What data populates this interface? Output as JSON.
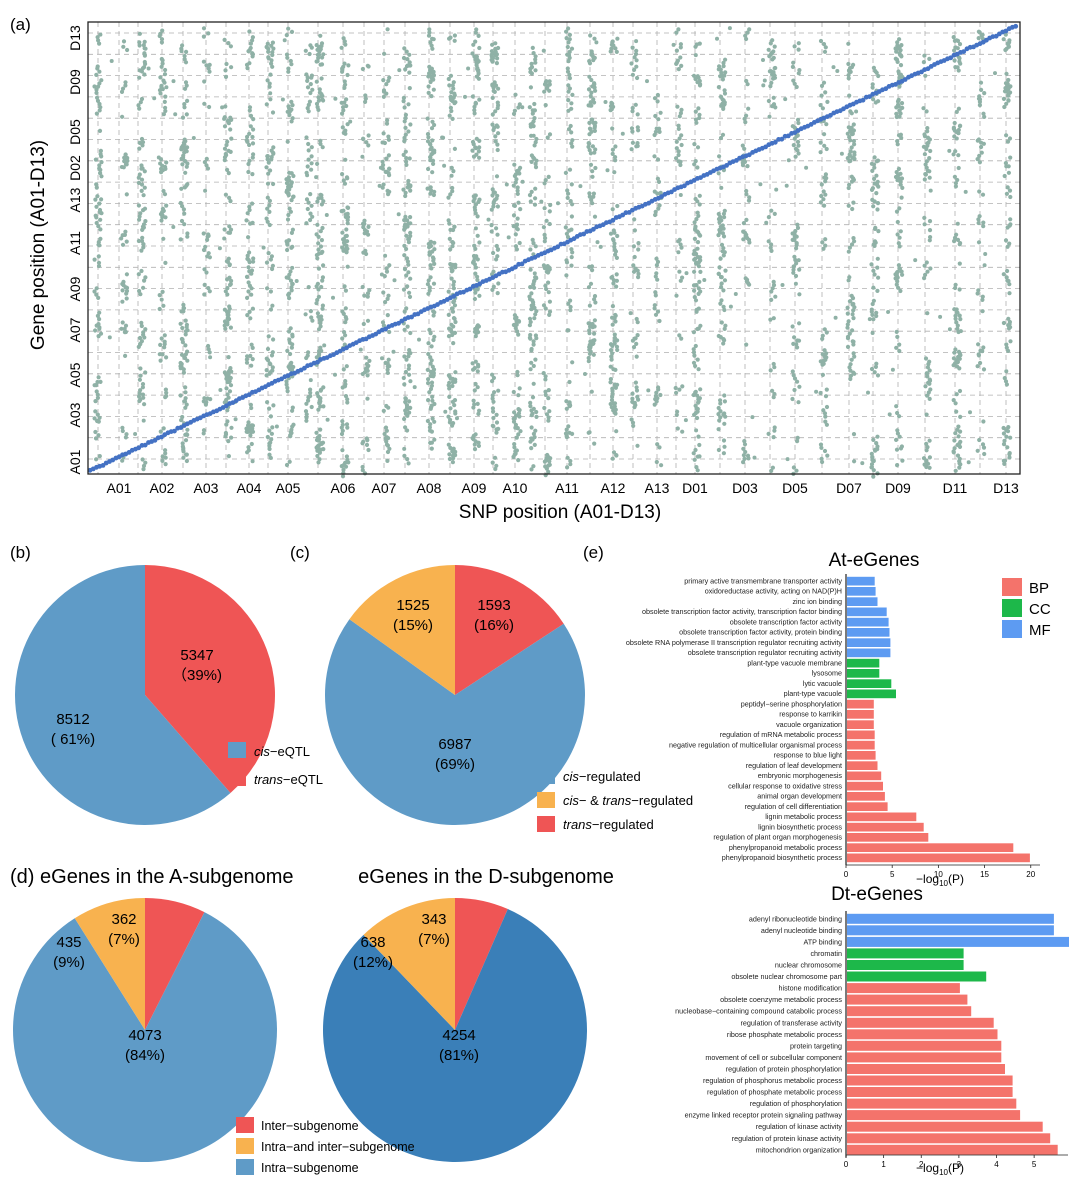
{
  "colors": {
    "qtl_dot": "#8fb1a6",
    "diagonal": "#4472c4",
    "grid": "#b0b0b0",
    "pie_blue": "#5f9bc7",
    "pie_blue_dark": "#3a7fb8",
    "pie_red": "#ef5555",
    "pie_orange": "#f8b24f",
    "bp": "#f4736b",
    "cc": "#1db84a",
    "mf": "#5d9bf2"
  },
  "panel_a": {
    "label": "(a)",
    "xlabel": "SNP position (A01-D13)",
    "ylabel": "Gene position (A01-D13)",
    "x_ticks": [
      "A01",
      "A02",
      "A03",
      "A04",
      "A05",
      "A06",
      "A07",
      "A08",
      "A09",
      "A10",
      "A11",
      "A12",
      "A13",
      "D01",
      "D03",
      "D05",
      "D07",
      "D09",
      "D11",
      "D13"
    ],
    "y_ticks": [
      "A01",
      "A03",
      "A05",
      "A07",
      "A09",
      "A11",
      "A13",
      "D02",
      "D05",
      "D09",
      "D13"
    ]
  },
  "panel_b": {
    "label": "(b)",
    "legend": [
      {
        "italic": "cis",
        "rest": "−eQTL"
      },
      {
        "italic": "trans",
        "rest": "−eQTL"
      }
    ],
    "labels": [
      {
        "value": "8512",
        "pct": "( 61%)"
      },
      {
        "value": "5347",
        "pct": "（39%)"
      }
    ]
  },
  "panel_c": {
    "label": "(c)",
    "legend": [
      {
        "italic": "cis",
        "rest": "−regulated"
      },
      {
        "italic": "cis",
        "rest": "− & ",
        "italic2": "trans",
        "rest2": "−regulated"
      },
      {
        "italic": "trans",
        "rest": "−regulated"
      }
    ],
    "labels": [
      {
        "value": "6987",
        "pct": "(69%)"
      },
      {
        "value": "1525",
        "pct": "(15%)"
      },
      {
        "value": "1593",
        "pct": "(16%)"
      }
    ]
  },
  "panel_d": {
    "label": "(d)",
    "title_a": "eGenes in the A-subgenome",
    "title_d": "eGenes in the D-subgenome",
    "legend": [
      "Inter−subgenome",
      "Intra−and inter−subgenome",
      "Intra−subgenome"
    ],
    "labels_a": [
      {
        "value": "4073",
        "pct": "(84%)"
      },
      {
        "value": "435",
        "pct": "(9%)"
      },
      {
        "value": "362",
        "pct": "(7%)"
      }
    ],
    "labels_d": [
      {
        "value": "4254",
        "pct": "(81%)"
      },
      {
        "value": "638",
        "pct": "(12%)"
      },
      {
        "value": "343",
        "pct": "(7%)"
      }
    ]
  },
  "panel_e": {
    "label": "(e)",
    "title_at": "At-eGenes",
    "title_dt": "Dt-eGenes",
    "xlabel": "−log",
    "xlabel_sub": "10",
    "xlabel_end": "(P)",
    "legend": [
      "BP",
      "CC",
      "MF"
    ],
    "at_ticks": [
      "0",
      "5",
      "10",
      "15",
      "20"
    ],
    "dt_ticks": [
      "0",
      "1",
      "2",
      "3",
      "4",
      "5"
    ]
  },
  "chart_data": [
    {
      "type": "scatter",
      "title": "",
      "xlabel": "SNP position (A01-D13)",
      "ylabel": "Gene position (A01-D13)",
      "x_tick_labels": [
        "A01",
        "A02",
        "A03",
        "A04",
        "A05",
        "A06",
        "A07",
        "A08",
        "A09",
        "A10",
        "A11",
        "A12",
        "A13",
        "D01",
        "D03",
        "D05",
        "D07",
        "D09",
        "D11",
        "D13"
      ],
      "y_tick_labels": [
        "A01",
        "A03",
        "A05",
        "A07",
        "A09",
        "A11",
        "A13",
        "D02",
        "D05",
        "D09",
        "D13"
      ],
      "grid": true,
      "series": [
        {
          "color": "#4472c4",
          "kind": "cis (diagonal)"
        },
        {
          "color": "#8fb1a6",
          "kind": "trans (vertical bands)"
        }
      ]
    },
    {
      "type": "pie",
      "categories": [
        "cis−eQTL",
        "trans−eQTL"
      ],
      "values": [
        8512,
        5347
      ],
      "percent": [
        61,
        39
      ]
    },
    {
      "type": "pie",
      "categories": [
        "cis−regulated",
        "cis− & trans−regulated",
        "trans−regulated"
      ],
      "values": [
        6987,
        1525,
        1593
      ],
      "percent": [
        69,
        15,
        16
      ]
    },
    {
      "type": "pie",
      "title": "eGenes in the A-subgenome",
      "categories": [
        "Intra−subgenome",
        "Intra−and inter−subgenome",
        "Inter−subgenome"
      ],
      "values": [
        4073,
        435,
        362
      ],
      "percent": [
        84,
        9,
        7
      ]
    },
    {
      "type": "pie",
      "title": "eGenes in the D-subgenome",
      "categories": [
        "Intra−subgenome",
        "Intra−and inter−subgenome",
        "Inter−subgenome"
      ],
      "values": [
        4254,
        638,
        343
      ],
      "percent": [
        81,
        12,
        7
      ]
    },
    {
      "type": "bar",
      "title": "At-eGenes",
      "xlabel": "−log10(P)",
      "xlim": [
        0,
        21
      ],
      "legend": [
        "BP",
        "CC",
        "MF"
      ],
      "categories": [
        "primary active transmembrane transporter activity",
        "oxidoreductase activity, acting on NAD(P)H",
        "zinc ion binding",
        "obsolete transcription factor activity, transcription factor binding",
        "obsolete transcription factor activity",
        "obsolete transcription factor activity, protein binding",
        "obsolete RNA polymerase II transcription regulator recruiting activity",
        "obsolete transcription regulator recruiting activity",
        "plant-type vacuole membrane",
        "lysosome",
        "lytic vacuole",
        "plant-type vacuole",
        "peptidyl−serine phosphorylation",
        "response to karrikin",
        "vacuole organization",
        "regulation of mRNA metabolic process",
        "negative regulation of multicellular organismal process",
        "response to blue light",
        "regulation of leaf development",
        "embryonic morphogenesis",
        "cellular response to oxidative stress",
        "animal organ development",
        "regulation of cell differentiation",
        "lignin metabolic process",
        "lignin biosynthetic process",
        "regulation of plant organ morphogenesis",
        "phenylpropanoid metabolic process",
        "phenylpropanoid biosynthetic process"
      ],
      "groups": [
        "MF",
        "MF",
        "MF",
        "MF",
        "MF",
        "MF",
        "MF",
        "MF",
        "CC",
        "CC",
        "CC",
        "CC",
        "BP",
        "BP",
        "BP",
        "BP",
        "BP",
        "BP",
        "BP",
        "BP",
        "BP",
        "BP",
        "BP",
        "BP",
        "BP",
        "BP",
        "BP",
        "BP"
      ],
      "values": [
        3.0,
        3.1,
        3.3,
        4.3,
        4.5,
        4.6,
        4.7,
        4.7,
        3.5,
        3.5,
        4.8,
        5.3,
        2.9,
        2.9,
        2.9,
        3.0,
        3.0,
        3.1,
        3.3,
        3.7,
        3.9,
        4.1,
        4.4,
        7.5,
        8.3,
        8.8,
        18.0,
        19.8
      ]
    },
    {
      "type": "bar",
      "title": "Dt-eGenes",
      "xlabel": "−log10(P)",
      "xlim": [
        0,
        5.9
      ],
      "legend": [
        "BP",
        "CC",
        "MF"
      ],
      "categories": [
        "adenyl ribonucleotide binding",
        "adenyl nucleotide binding",
        "ATP binding",
        "chromatin",
        "nuclear chromosome",
        "obsolete nuclear chromosome part",
        "histone modification",
        "obsolete coenzyme metabolic process",
        "nucleobase−containing compound catabolic process",
        "regulation of transferase activity",
        "ribose phosphate metabolic process",
        "protein targeting",
        "movement of cell or subcellular component",
        "regulation of protein phosphorylation",
        "regulation of phosphorus metabolic process",
        "regulation of phosphate metabolic process",
        "regulation of phosphorylation",
        "enzyme linked receptor protein signaling pathway",
        "regulation of kinase activity",
        "regulation of protein kinase activity",
        "mitochondrion organization"
      ],
      "groups": [
        "MF",
        "MF",
        "MF",
        "CC",
        "CC",
        "CC",
        "BP",
        "BP",
        "BP",
        "BP",
        "BP",
        "BP",
        "BP",
        "BP",
        "BP",
        "BP",
        "BP",
        "BP",
        "BP",
        "BP",
        "BP"
      ],
      "values": [
        5.5,
        5.5,
        5.9,
        3.1,
        3.1,
        3.7,
        3.0,
        3.2,
        3.3,
        3.9,
        4.0,
        4.1,
        4.1,
        4.2,
        4.4,
        4.4,
        4.5,
        4.6,
        5.2,
        5.4,
        5.6
      ]
    }
  ]
}
